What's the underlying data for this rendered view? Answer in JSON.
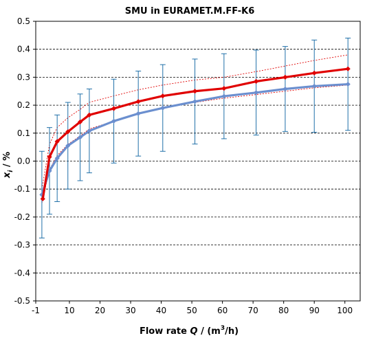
{
  "chart_data": {
    "type": "line",
    "title": "SMU in EURAMET.M.FF-K6",
    "xlabel": {
      "prefix": "Flow rate ",
      "var": "Q",
      "unit_pre": " / (m",
      "sup": "3",
      "unit_post": "/h)"
    },
    "ylabel": {
      "var": "x",
      "sub": "i",
      "unit": " / %"
    },
    "xlim": [
      -1,
      105
    ],
    "ylim": [
      -0.5,
      0.5
    ],
    "x_ticks": [
      -1,
      10,
      20,
      30,
      40,
      50,
      60,
      70,
      80,
      90,
      100
    ],
    "y_ticks": [
      -0.5,
      -0.4,
      -0.3,
      -0.2,
      -0.1,
      0.0,
      0.1,
      0.2,
      0.3,
      0.4,
      0.5
    ],
    "y_tick_labels": [
      "-0.5",
      "-0.4",
      "-0.3",
      "-0.2",
      "-0.1",
      "0.0",
      "0.1",
      "0.2",
      "0.3",
      "0.4",
      "0.5"
    ],
    "grid": "horizontal dashed",
    "series": [
      {
        "color": "#e00000",
        "x": [
          1.3,
          3.5,
          6.0,
          9.5,
          13.5,
          16.5,
          24.5,
          32.5,
          40.5,
          51.0,
          60.5,
          71.0,
          80.5,
          90.0,
          101.0
        ],
        "y": [
          -0.135,
          0.015,
          0.07,
          0.105,
          0.14,
          0.165,
          0.188,
          0.213,
          0.233,
          0.25,
          0.26,
          0.285,
          0.3,
          0.315,
          0.33
        ]
      },
      {
        "color": "#6b8fcf",
        "x": [
          1.0,
          3.5,
          6.0,
          9.5,
          13.5,
          16.5,
          24.5,
          32.5,
          40.5,
          51.0,
          60.5,
          71.0,
          80.5,
          90.0,
          101.0
        ],
        "y": [
          -0.12,
          -0.035,
          0.01,
          0.055,
          0.085,
          0.108,
          0.143,
          0.17,
          0.19,
          0.213,
          0.232,
          0.245,
          0.258,
          0.268,
          0.275
        ],
        "error": [
          0.155,
          0.155,
          0.155,
          0.155,
          0.155,
          0.15,
          0.15,
          0.152,
          0.155,
          0.152,
          0.152,
          0.152,
          0.152,
          0.165,
          0.165
        ]
      }
    ],
    "bounds": {
      "color": "#e00000",
      "upper": {
        "x": [
          1.0,
          3.5,
          6.0,
          9.5,
          13.5,
          16.5,
          24.5,
          32.5,
          40.5,
          51.0,
          60.5,
          71.0,
          80.5,
          90.0,
          101.0
        ],
        "y": [
          -0.1,
          0.06,
          0.12,
          0.155,
          0.185,
          0.21,
          0.233,
          0.255,
          0.272,
          0.29,
          0.3,
          0.32,
          0.34,
          0.36,
          0.38
        ]
      },
      "lower": {
        "x": [
          1.0,
          3.5,
          6.0,
          9.5,
          13.5,
          16.5,
          24.5,
          32.5,
          40.5,
          51.0,
          60.5,
          71.0,
          80.5,
          90.0,
          101.0
        ],
        "y": [
          -0.15,
          -0.03,
          0.02,
          0.06,
          0.09,
          0.115,
          0.143,
          0.168,
          0.19,
          0.21,
          0.225,
          0.238,
          0.25,
          0.262,
          0.272
        ]
      }
    }
  }
}
